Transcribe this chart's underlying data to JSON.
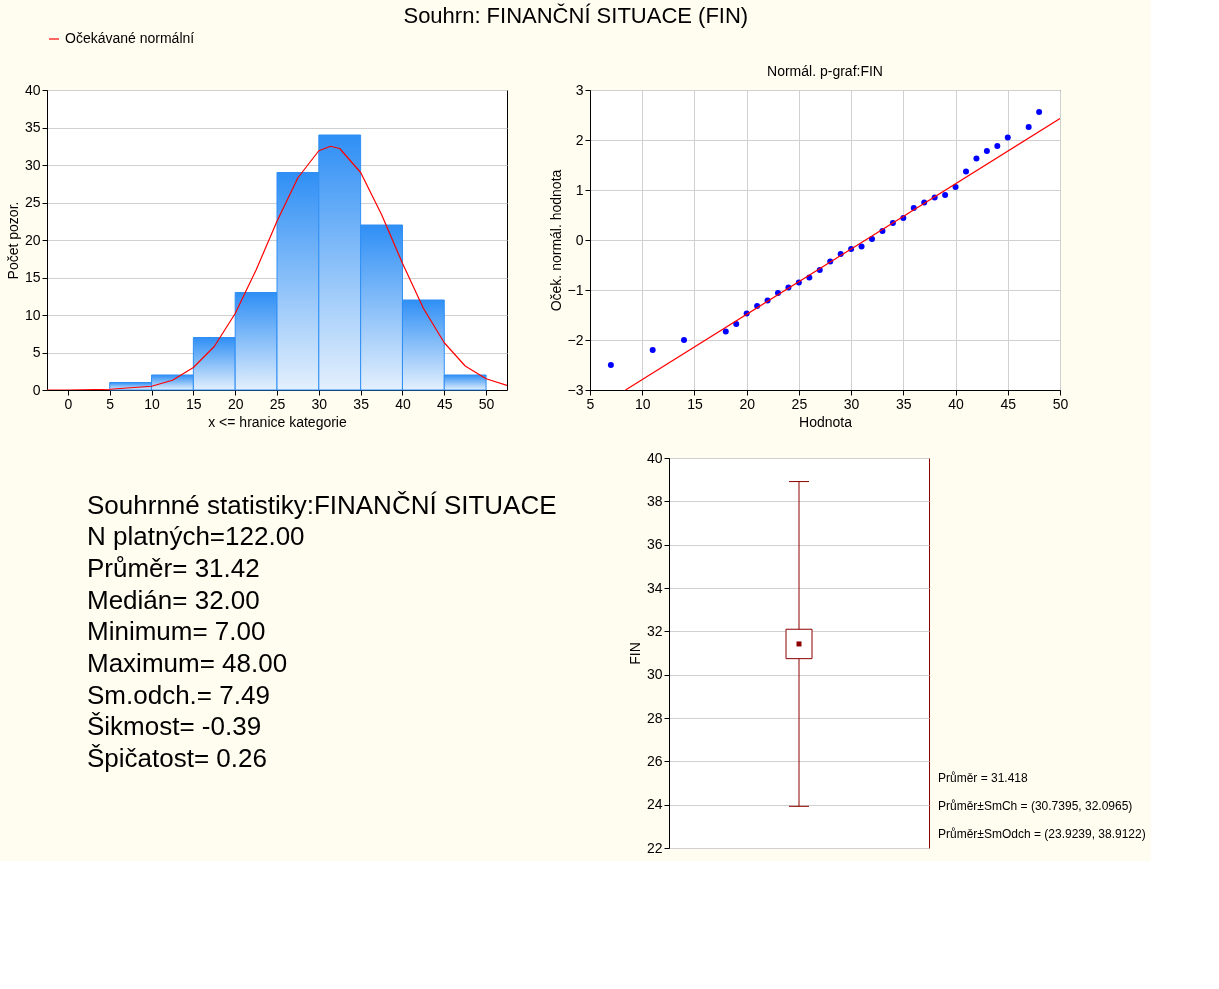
{
  "chart_data": [
    {
      "type": "histogram",
      "title": "Souhrn: FINANČNÍ SITUACE (FIN)",
      "xlabel": "x <= hranice kategorie",
      "ylabel": "Počet pozor.",
      "xlim": [
        -2.5,
        52.5
      ],
      "xticks": [
        0,
        5,
        10,
        15,
        20,
        25,
        30,
        35,
        40,
        45,
        50
      ],
      "ylim": [
        0,
        40
      ],
      "yticks": [
        0,
        5,
        10,
        15,
        20,
        25,
        30,
        35,
        40
      ],
      "grid": "y",
      "legend": "top",
      "series": [
        {
          "type": "histogram",
          "color": "#2f8ff5",
          "bins": [
            5,
            10,
            15,
            20,
            25,
            30,
            35,
            40,
            45,
            50
          ],
          "values": [
            1,
            2,
            7,
            13,
            29,
            34,
            22,
            12,
            2
          ]
        },
        {
          "type": "line",
          "name": "Očekávané normální",
          "color": "#ff0000",
          "x": [
            -2.5,
            0,
            5,
            10,
            12.5,
            15,
            17.5,
            20,
            22.5,
            25,
            27.5,
            30,
            31.4,
            32.5,
            35,
            37.5,
            40,
            42.5,
            45,
            47.5,
            50,
            52.5
          ],
          "values": [
            0,
            0,
            0.1,
            0.5,
            1.3,
            3,
            5.8,
            10.2,
            16,
            22.5,
            28.3,
            31.9,
            32.5,
            32.2,
            29,
            23.4,
            16.9,
            10.9,
            6.3,
            3.2,
            1.5,
            0.6
          ]
        }
      ]
    },
    {
      "type": "scatter",
      "title": "Normál. p-graf:FIN",
      "xlabel": "Hodnota",
      "ylabel": "Oček. normál. hodnota",
      "xlim": [
        5,
        50
      ],
      "xticks": [
        5,
        10,
        15,
        20,
        25,
        30,
        35,
        40,
        45,
        50
      ],
      "ylim": [
        -3,
        3
      ],
      "yticks": [
        -3,
        -2,
        -1,
        0,
        1,
        2,
        3
      ],
      "grid": true,
      "series": [
        {
          "type": "scatter",
          "color": "#0000ff",
          "marker": "circle",
          "x": [
            7,
            11,
            14,
            18,
            19,
            20,
            21,
            22,
            23,
            24,
            25,
            26,
            27,
            28,
            29,
            30,
            31,
            32,
            33,
            34,
            35,
            36,
            37,
            38,
            39,
            40,
            41,
            42,
            43,
            44,
            45,
            47,
            48
          ],
          "values": [
            -2.5,
            -2.2,
            -2.0,
            -1.83,
            -1.68,
            -1.47,
            -1.32,
            -1.21,
            -1.06,
            -0.95,
            -0.85,
            -0.75,
            -0.6,
            -0.43,
            -0.28,
            -0.18,
            -0.13,
            0.02,
            0.18,
            0.34,
            0.44,
            0.64,
            0.75,
            0.85,
            0.9,
            1.06,
            1.37,
            1.63,
            1.78,
            1.88,
            2.05,
            2.26,
            2.56
          ]
        },
        {
          "type": "line",
          "color": "#ff0000",
          "x": [
            8.4,
            50
          ],
          "values": [
            -3,
            2.43
          ]
        }
      ]
    },
    {
      "type": "other",
      "title": "Souhrnné statistiky:FINANČNÍ SITUACE",
      "annotations": [
        "N platných=122.00",
        "Průměr= 31.42",
        "Medián= 32.00",
        "Minimum=  7.00",
        "Maximum= 48.00",
        "Sm.odch.=  7.49",
        "Šikmost= -0.39",
        "Špičatost=  0.26"
      ]
    },
    {
      "type": "box",
      "ylabel": "FIN",
      "categories": [
        null
      ],
      "ylim": [
        22,
        40
      ],
      "yticks": [
        22,
        24,
        26,
        28,
        30,
        32,
        34,
        36,
        38,
        40
      ],
      "grid": "y",
      "series": [
        {
          "color": "#8b0000",
          "boxes": [
            {
              "low": 23.9239,
              "q1": 30.7395,
              "q3": 32.0965,
              "high": 38.9122,
              "mean": 31.418
            }
          ]
        }
      ],
      "annotations": [
        "Průměr = 31.418",
        "Průměr±SmCh = (30.7395, 32.0965)",
        "Průměr±SmOdch = (23.9239, 38.9122)"
      ]
    }
  ]
}
